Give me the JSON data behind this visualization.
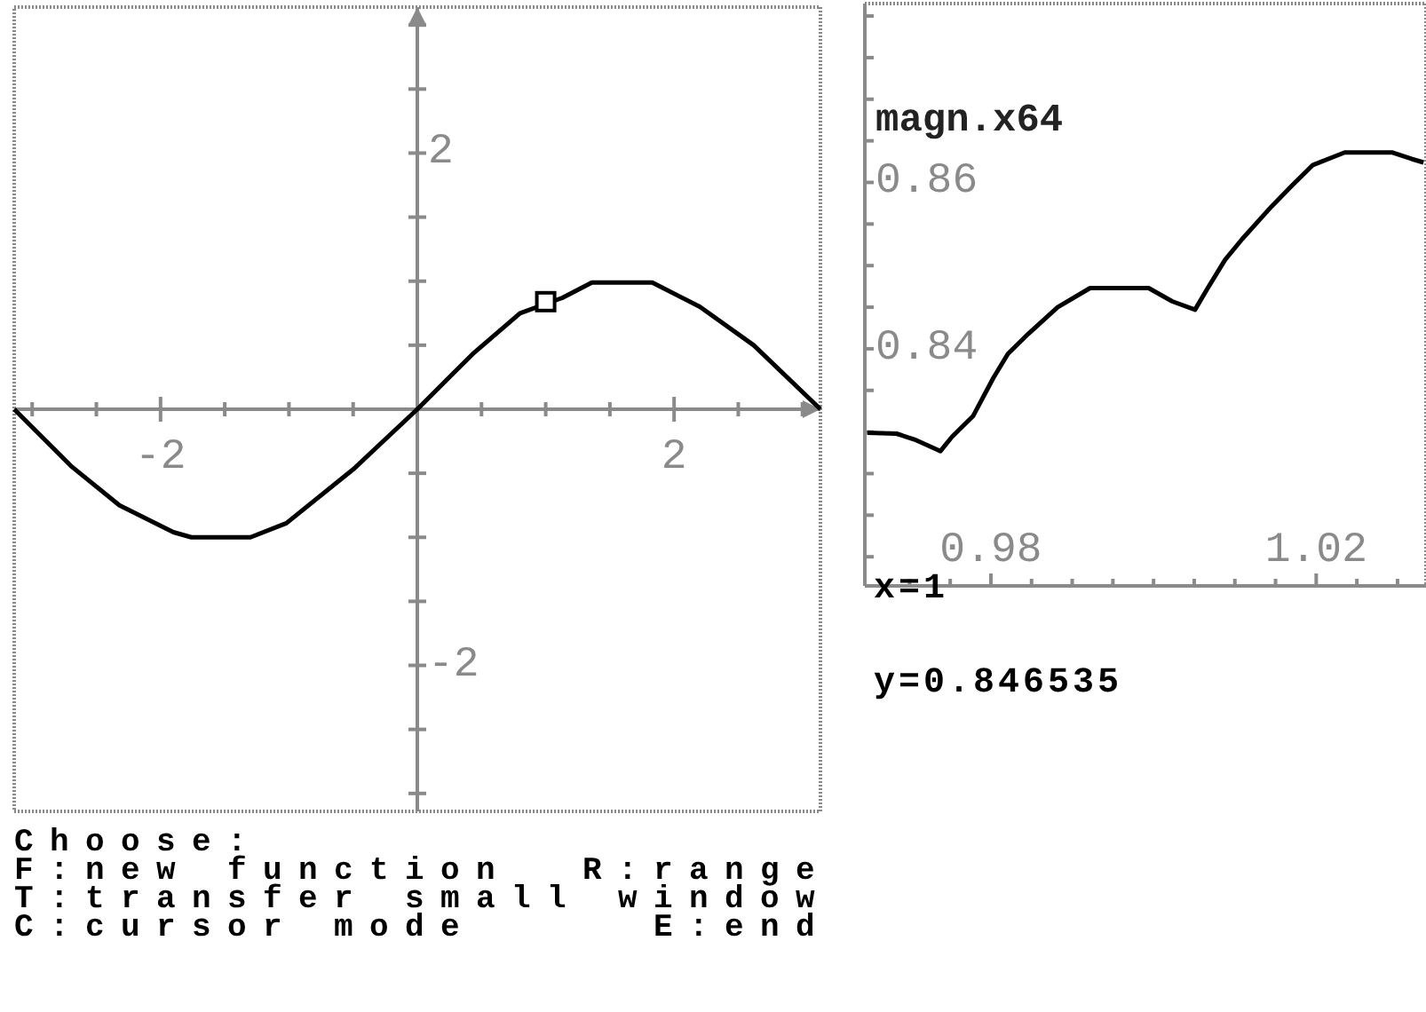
{
  "chart_data": [
    {
      "type": "line",
      "xlim": [
        -3.14,
        3.14
      ],
      "ylim": [
        -3.14,
        3.14
      ],
      "xticks": [
        {
          "value": -3,
          "label": null
        },
        {
          "value": -2.5,
          "label": null
        },
        -2,
        {
          "value": -1.5,
          "label": null
        },
        {
          "value": -1,
          "label": null
        },
        {
          "value": -0.5,
          "label": null
        },
        {
          "value": 0.5,
          "label": null
        },
        {
          "value": 1,
          "label": null
        },
        {
          "value": 1.5,
          "label": null
        },
        2,
        {
          "value": 2.5,
          "label": null
        },
        {
          "value": 3,
          "label": null
        }
      ],
      "yticks": [
        {
          "value": -3,
          "label": null
        },
        {
          "value": -2.5,
          "label": null
        },
        -2,
        {
          "value": -1.5,
          "label": null
        },
        {
          "value": -1,
          "label": null
        },
        {
          "value": -0.5,
          "label": null
        },
        {
          "value": 0.5,
          "label": null
        },
        {
          "value": 1,
          "label": null
        },
        {
          "value": 1.5,
          "label": null
        },
        2,
        {
          "value": 2.5,
          "label": null
        },
        {
          "value": 3,
          "label": null
        }
      ],
      "series": [
        {
          "color": "#000000",
          "x": [
            -3.14,
            -2.69,
            -2.32,
            -1.9,
            -1.76,
            -1.3,
            -1.02,
            -0.5,
            0,
            0.43,
            0.8,
            1.13,
            1.36,
            1.83,
            2.2,
            2.62,
            3.14
          ],
          "values": [
            0,
            -0.45,
            -0.75,
            -0.96,
            -1,
            -1,
            -0.89,
            -0.47,
            0,
            0.43,
            0.75,
            0.87,
            0.99,
            0.99,
            0.8,
            0.5,
            0
          ]
        },
        {
          "type": "scatter",
          "marker": "square",
          "color": "#000000",
          "x": [
            1
          ],
          "values": [
            0.84
          ]
        }
      ],
      "annotations": [
        "Choose:",
        "F:new function  R:range",
        "T:transfer small window",
        "C:cursor mode     E:end"
      ]
    },
    {
      "type": "line",
      "title": "magn.x64",
      "xlim": [
        0.9645,
        1.0335
      ],
      "ylim": [
        0.8115,
        0.8815
      ],
      "xticks": [
        {
          "value": 0.97,
          "label": null
        },
        {
          "value": 0.975,
          "label": null
        },
        0.98,
        {
          "value": 0.985,
          "label": null
        },
        {
          "value": 0.99,
          "label": null
        },
        {
          "value": 0.995,
          "label": null
        },
        {
          "value": 1,
          "label": null
        },
        {
          "value": 1.005,
          "label": null
        },
        {
          "value": 1.01,
          "label": null
        },
        {
          "value": 1.015,
          "label": null
        },
        1.02,
        {
          "value": 1.025,
          "label": null
        },
        {
          "value": 1.03,
          "label": null
        }
      ],
      "yticks": [
        {
          "value": 0.815,
          "label": null
        },
        {
          "value": 0.82,
          "label": null
        },
        {
          "value": 0.825,
          "label": null
        },
        {
          "value": 0.83,
          "label": null
        },
        {
          "value": 0.835,
          "label": null
        },
        0.84,
        {
          "value": 0.845,
          "label": null
        },
        {
          "value": 0.85,
          "label": null
        },
        {
          "value": 0.855,
          "label": null
        },
        0.86,
        {
          "value": 0.865,
          "label": null
        },
        {
          "value": 0.87,
          "label": null
        },
        {
          "value": 0.875,
          "label": null
        },
        {
          "value": 0.88,
          "label": null
        }
      ],
      "series": [
        {
          "color": "#000000",
          "x": [
            0.9648,
            0.9684,
            0.9706,
            0.9738,
            0.9752,
            0.9778,
            0.9803,
            0.9821,
            0.9846,
            0.9882,
            0.9922,
            0.9994,
            1.0023,
            1.0051,
            1.0066,
            1.0088,
            1.0109,
            1.0145,
            1.017,
            1.0196,
            1.0235,
            1.0293,
            1.0318,
            1.0332
          ],
          "values": [
            0.8299,
            0.8298,
            0.8291,
            0.8277,
            0.8294,
            0.8319,
            0.8365,
            0.8394,
            0.8418,
            0.845,
            0.8473,
            0.8473,
            0.8457,
            0.8447,
            0.8472,
            0.8507,
            0.8532,
            0.8571,
            0.8596,
            0.8621,
            0.8636,
            0.8636,
            0.8628,
            0.8624
          ]
        }
      ],
      "annotations": [
        "x=1",
        "y=0.846535"
      ]
    }
  ]
}
